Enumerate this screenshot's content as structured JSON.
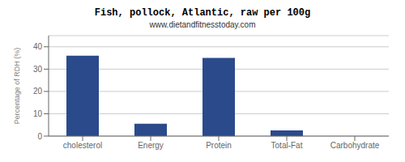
{
  "chart_data": {
    "type": "bar",
    "title": "Fish, pollock, Atlantic, raw per 100g",
    "subtitle": "www.dietandfitnesstoday.com",
    "categories": [
      "cholesterol",
      "Energy",
      "Protein",
      "Total-Fat",
      "Carbohydrate"
    ],
    "values": [
      36,
      5.5,
      35,
      2.5,
      0
    ],
    "color": "#2b4a8b",
    "ylabel": "Percentage of RDH (%)",
    "ylim": [
      0,
      45
    ],
    "yticks": [
      0,
      10,
      20,
      30,
      40
    ],
    "grid": true
  }
}
